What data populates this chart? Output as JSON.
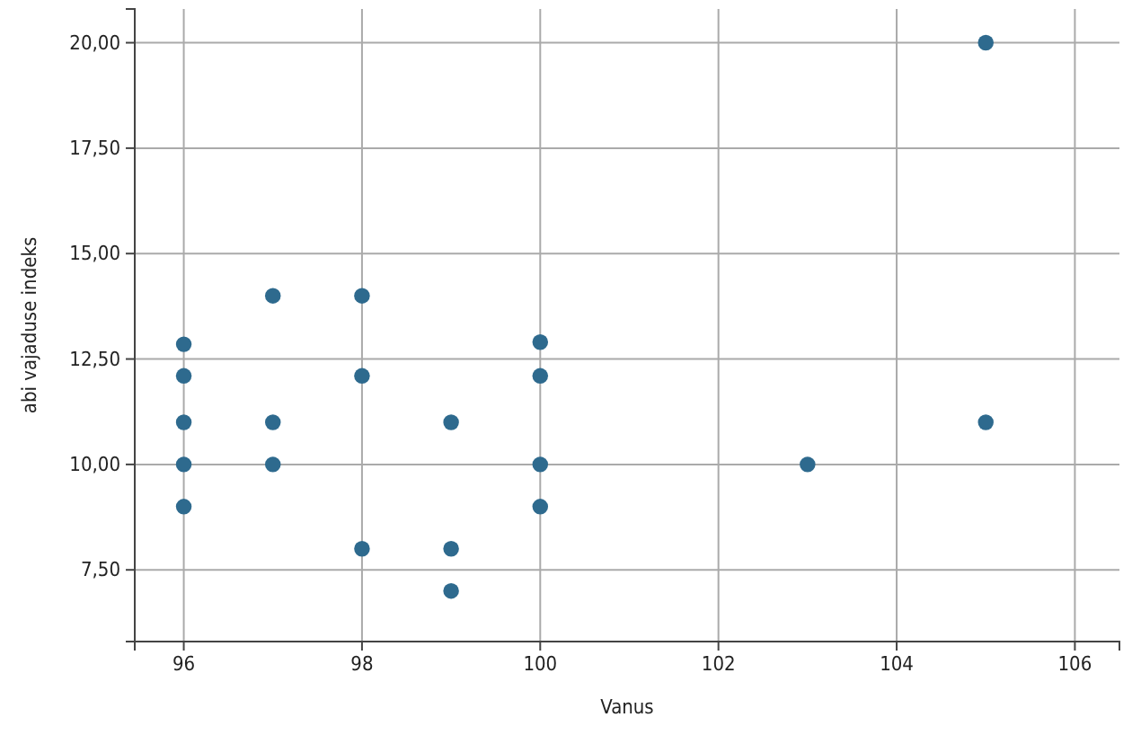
{
  "chart_data": {
    "type": "scatter",
    "xlabel": "Vanus",
    "ylabel": "abi vajaduse indeks",
    "x": [
      96,
      96,
      96,
      96,
      96,
      97,
      97,
      97,
      98,
      98,
      98,
      99,
      99,
      99,
      100,
      100,
      100,
      100,
      103,
      105,
      105
    ],
    "values": [
      12.85,
      12.1,
      11,
      10,
      9,
      14,
      11,
      10,
      14,
      12.1,
      8,
      11,
      8,
      7,
      12.9,
      12.1,
      10,
      9,
      10,
      20,
      11
    ],
    "color": "#2e6a8e",
    "marker": "circle",
    "xlim": [
      95.45,
      106.5
    ],
    "xticks": [
      96,
      98,
      100,
      102,
      104,
      106
    ],
    "ylim": [
      5.8,
      20.8
    ],
    "yticks": [
      {
        "value": 7.5,
        "label": "7,50"
      },
      {
        "value": 10,
        "label": "10,00"
      },
      {
        "value": 12.5,
        "label": "12,50"
      },
      {
        "value": 15,
        "label": "15,00"
      },
      {
        "value": 17.5,
        "label": "17,50"
      },
      {
        "value": 20,
        "label": "20,00"
      }
    ],
    "grid": true
  }
}
